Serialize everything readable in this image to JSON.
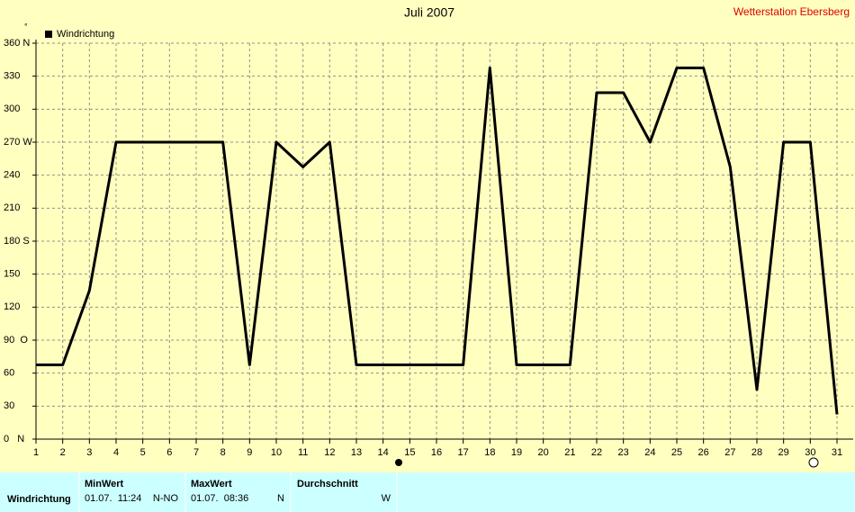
{
  "chart_data": {
    "type": "line",
    "title": "Juli 2007",
    "subtitle": "Wetterstation Ebersberg",
    "y_unit": "°",
    "x": [
      1,
      2,
      3,
      4,
      5,
      6,
      7,
      8,
      9,
      10,
      11,
      12,
      13,
      14,
      15,
      16,
      17,
      18,
      19,
      20,
      21,
      22,
      23,
      24,
      25,
      26,
      27,
      28,
      29,
      30,
      31
    ],
    "xlim": [
      1,
      31
    ],
    "xticks": [
      1,
      2,
      3,
      4,
      5,
      6,
      7,
      8,
      9,
      10,
      11,
      12,
      13,
      14,
      15,
      16,
      17,
      18,
      19,
      20,
      21,
      22,
      23,
      24,
      25,
      26,
      27,
      28,
      29,
      30,
      31
    ],
    "series": [
      {
        "name": "Windrichtung",
        "color": "#000000",
        "values": [
          67.5,
          67.5,
          135,
          270,
          270,
          270,
          270,
          270,
          67.5,
          270,
          247.5,
          270,
          67.5,
          67.5,
          67.5,
          67.5,
          67.5,
          337.5,
          67.5,
          67.5,
          67.5,
          315,
          315,
          270,
          337.5,
          337.5,
          247.5,
          45,
          270,
          270,
          22.5
        ]
      }
    ],
    "ylim": [
      0,
      360
    ],
    "yticks": [
      {
        "value": 0,
        "label": "0   N"
      },
      30,
      60,
      {
        "value": 90,
        "label": "90  O"
      },
      120,
      150,
      {
        "value": 180,
        "label": "180 S"
      },
      210,
      240,
      {
        "value": 270,
        "label": "270 W"
      },
      300,
      330,
      {
        "value": 360,
        "label": "360 N"
      }
    ],
    "grid": true,
    "legend": "top-left"
  },
  "summary": {
    "headers": [
      "MinWert",
      "MaxWert",
      "Durchschnitt"
    ],
    "rows": [
      {
        "label": "Windrichtung",
        "min_time": "01.07.  11:24",
        "min_dir": "N-NO",
        "max_time": "01.07.  08:36",
        "max_dir": "N",
        "avg": "W"
      }
    ]
  }
}
